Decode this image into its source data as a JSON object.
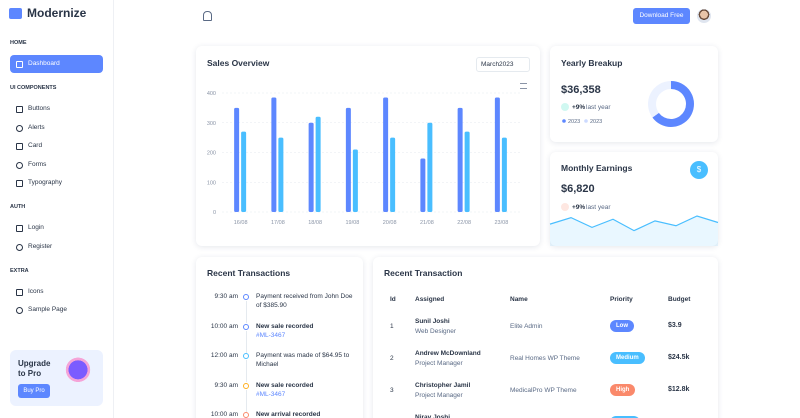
{
  "sidebar": {
    "logo": "Modernize",
    "sections": [
      {
        "title": "HOME",
        "items": [
          "Dashboard"
        ]
      },
      {
        "title": "UI COMPONENTS",
        "items": [
          "Buttons",
          "Alerts",
          "Card",
          "Forms",
          "Typography"
        ]
      },
      {
        "title": "AUTH",
        "items": [
          "Login",
          "Register"
        ]
      },
      {
        "title": "EXTRA",
        "items": [
          "Icons",
          "Sample Page"
        ]
      }
    ],
    "upgrade": {
      "title": "Upgrade to Pro",
      "button": "Buy Pro"
    }
  },
  "header": {
    "button": "Download Free"
  },
  "chart_data": {
    "type": "bar",
    "title": "Sales Overview",
    "filter": "March2023",
    "categories": [
      "16/08",
      "17/08",
      "18/08",
      "19/08",
      "20/08",
      "21/08",
      "22/08",
      "23/08"
    ],
    "series": [
      {
        "color": "#5d87ff",
        "values": [
          350,
          385,
          300,
          350,
          385,
          180,
          350,
          385
        ]
      },
      {
        "color": "#49beff",
        "values": [
          270,
          250,
          320,
          210,
          250,
          300,
          270,
          250
        ]
      }
    ],
    "ylim": [
      0,
      400
    ],
    "yticks": [
      0,
      100,
      200,
      300,
      400
    ],
    "grid": true
  },
  "yearly": {
    "title": "Yearly Breakup",
    "amount": "$36,358",
    "change": "+9%",
    "change_note": "last year",
    "trend_color": "#13deb9",
    "legend": [
      {
        "label": "2023",
        "color": "#5d87ff"
      },
      {
        "label": "2023",
        "color": "#ecf2ff"
      }
    ],
    "donut": [
      {
        "value": 65,
        "color": "#5d87ff"
      },
      {
        "value": 35,
        "color": "#ecf2ff"
      }
    ]
  },
  "monthly": {
    "title": "Monthly Earnings",
    "icon": "$",
    "amount": "$6,820",
    "change": "+9%",
    "change_note": "last year",
    "trend_color": "#fa896b",
    "sparkline": [
      22,
      30,
      18,
      28,
      14,
      26,
      20,
      32,
      24
    ],
    "sparkline_color": "#49beff"
  },
  "transactions": {
    "title": "Recent Transactions",
    "items": [
      {
        "time": "9:30 am",
        "text": "Payment received from John Doe of $385.90",
        "color": "#5d87ff",
        "bold": false
      },
      {
        "time": "10:00 am",
        "text": "New sale recorded",
        "ref": "#ML-3467",
        "color": "#5d87ff",
        "bold": true
      },
      {
        "time": "12:00 am",
        "text": "Payment was made of $64.95 to Michael",
        "color": "#49beff",
        "bold": false
      },
      {
        "time": "9:30 am",
        "text": "New sale recorded",
        "ref": "#ML-3467",
        "color": "#ffae1f",
        "bold": true
      },
      {
        "time": "10:00 am",
        "text": "New arrival recorded",
        "color": "#fa896b",
        "bold": true
      }
    ]
  },
  "table": {
    "title": "Recent Transaction",
    "headers": [
      "Id",
      "Assigned",
      "Name",
      "Priority",
      "Budget"
    ],
    "rows": [
      {
        "id": "1",
        "assigned": "Sunil Joshi",
        "role": "Web Designer",
        "name": "Elite Admin",
        "priority": "Low",
        "priority_color": "#5d87ff",
        "budget": "$3.9"
      },
      {
        "id": "2",
        "assigned": "Andrew McDownland",
        "role": "Project Manager",
        "name": "Real Homes WP Theme",
        "priority": "Medium",
        "priority_color": "#49beff",
        "budget": "$24.5k"
      },
      {
        "id": "3",
        "assigned": "Christopher Jamil",
        "role": "Project Manager",
        "name": "MedicalPro WP Theme",
        "priority": "High",
        "priority_color": "#fa896b",
        "budget": "$12.8k"
      },
      {
        "assigned": "Nirav Joshi",
        "priority_color": "#49beff"
      }
    ]
  }
}
